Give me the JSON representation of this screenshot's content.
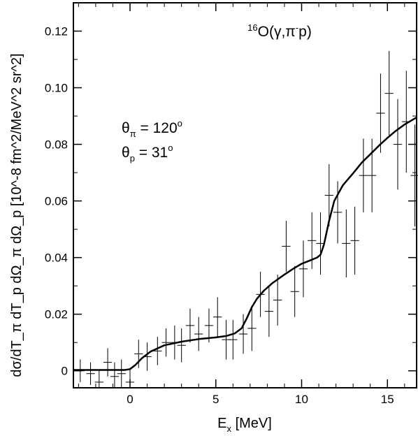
{
  "chart_data": {
    "type": "scatter",
    "title": "",
    "xlabel": "E",
    "xlabel_sub": "x",
    "xlabel_unit": " [MeV]",
    "ylabel": "dσ/dT_π dT_p dΩ_π dΩ_p [10^-8 fm^2/MeV^2 sr^2]",
    "xlim": [
      -3.3,
      16.7
    ],
    "ylim": [
      -0.006,
      0.13
    ],
    "xticks": [
      0,
      5,
      10,
      15
    ],
    "xtick_labels": [
      "0",
      "5",
      "10",
      "15"
    ],
    "yticks": [
      0,
      0.02,
      0.04,
      0.06,
      0.08,
      0.1,
      0.12
    ],
    "ytick_labels": [
      "0",
      "0.02",
      "0.04",
      "0.06",
      "0.08",
      "0.10",
      "0.12"
    ],
    "grid": false,
    "legend": "none",
    "annotations": {
      "reaction": {
        "pre_sup": "16",
        "main": "O(γ,π",
        "sup": "-",
        "end": "p)"
      },
      "theta_pi": {
        "sym": "θ",
        "sub": "π",
        "eq": " = 120",
        "sup": "o"
      },
      "theta_p": {
        "sym": "θ",
        "sub": "p",
        "eq": " = 31",
        "sup": "o"
      }
    },
    "series": [
      {
        "type": "errorbar",
        "x": [
          -2.9,
          -2.3,
          -1.8,
          -1.3,
          -0.9,
          -0.5,
          0.0,
          0.5,
          1.0,
          1.6,
          2.1,
          2.6,
          3.0,
          3.5,
          4.0,
          4.6,
          5.1,
          5.6,
          6.0,
          6.6,
          7.1,
          7.6,
          8.1,
          8.6,
          9.1,
          9.6,
          10.1,
          10.6,
          11.1,
          11.6,
          12.1,
          12.6,
          13.1,
          13.6,
          14.1,
          14.6,
          15.1,
          15.6,
          16.1,
          16.6
        ],
        "y": [
          0.0,
          -0.001,
          -0.004,
          0.003,
          -0.002,
          -0.001,
          -0.004,
          0.006,
          0.005,
          0.007,
          0.01,
          0.01,
          0.009,
          0.016,
          0.013,
          0.016,
          0.019,
          0.011,
          0.011,
          0.013,
          0.015,
          0.027,
          0.021,
          0.025,
          0.044,
          0.028,
          0.036,
          0.046,
          0.045,
          0.062,
          0.056,
          0.045,
          0.046,
          0.069,
          0.069,
          0.091,
          0.098,
          0.08,
          0.088,
          0.069
        ],
        "yerr": [
          0.004,
          0.004,
          0.004,
          0.005,
          0.005,
          0.005,
          0.005,
          0.005,
          0.005,
          0.005,
          0.005,
          0.006,
          0.006,
          0.006,
          0.006,
          0.006,
          0.007,
          0.007,
          0.007,
          0.007,
          0.008,
          0.008,
          0.009,
          0.009,
          0.009,
          0.009,
          0.01,
          0.01,
          0.011,
          0.011,
          0.011,
          0.012,
          0.012,
          0.013,
          0.013,
          0.014,
          0.015,
          0.016,
          0.018,
          0.018
        ],
        "xerr": 0.25
      },
      {
        "type": "line",
        "x": [
          -3.3,
          -1.0,
          -0.3,
          0.0,
          0.3,
          0.7,
          1.2,
          2.0,
          3.0,
          4.0,
          5.0,
          5.6,
          6.1,
          6.5,
          6.8,
          7.1,
          7.4,
          7.8,
          8.3,
          9.0,
          9.5,
          10.0,
          10.5,
          10.9,
          11.1,
          11.3,
          11.6,
          11.9,
          12.4,
          13.0,
          13.5,
          14.0,
          14.5,
          15.0,
          15.5,
          16.0,
          16.7
        ],
        "y": [
          0.0003,
          0.0003,
          0.0003,
          0.0006,
          0.002,
          0.0045,
          0.0068,
          0.009,
          0.0103,
          0.0112,
          0.0118,
          0.0123,
          0.0132,
          0.015,
          0.0185,
          0.0225,
          0.0255,
          0.0283,
          0.031,
          0.034,
          0.036,
          0.0378,
          0.039,
          0.04,
          0.041,
          0.0445,
          0.053,
          0.06,
          0.0655,
          0.0698,
          0.0735,
          0.0765,
          0.0795,
          0.0823,
          0.0848,
          0.087,
          0.0895
        ]
      }
    ]
  }
}
